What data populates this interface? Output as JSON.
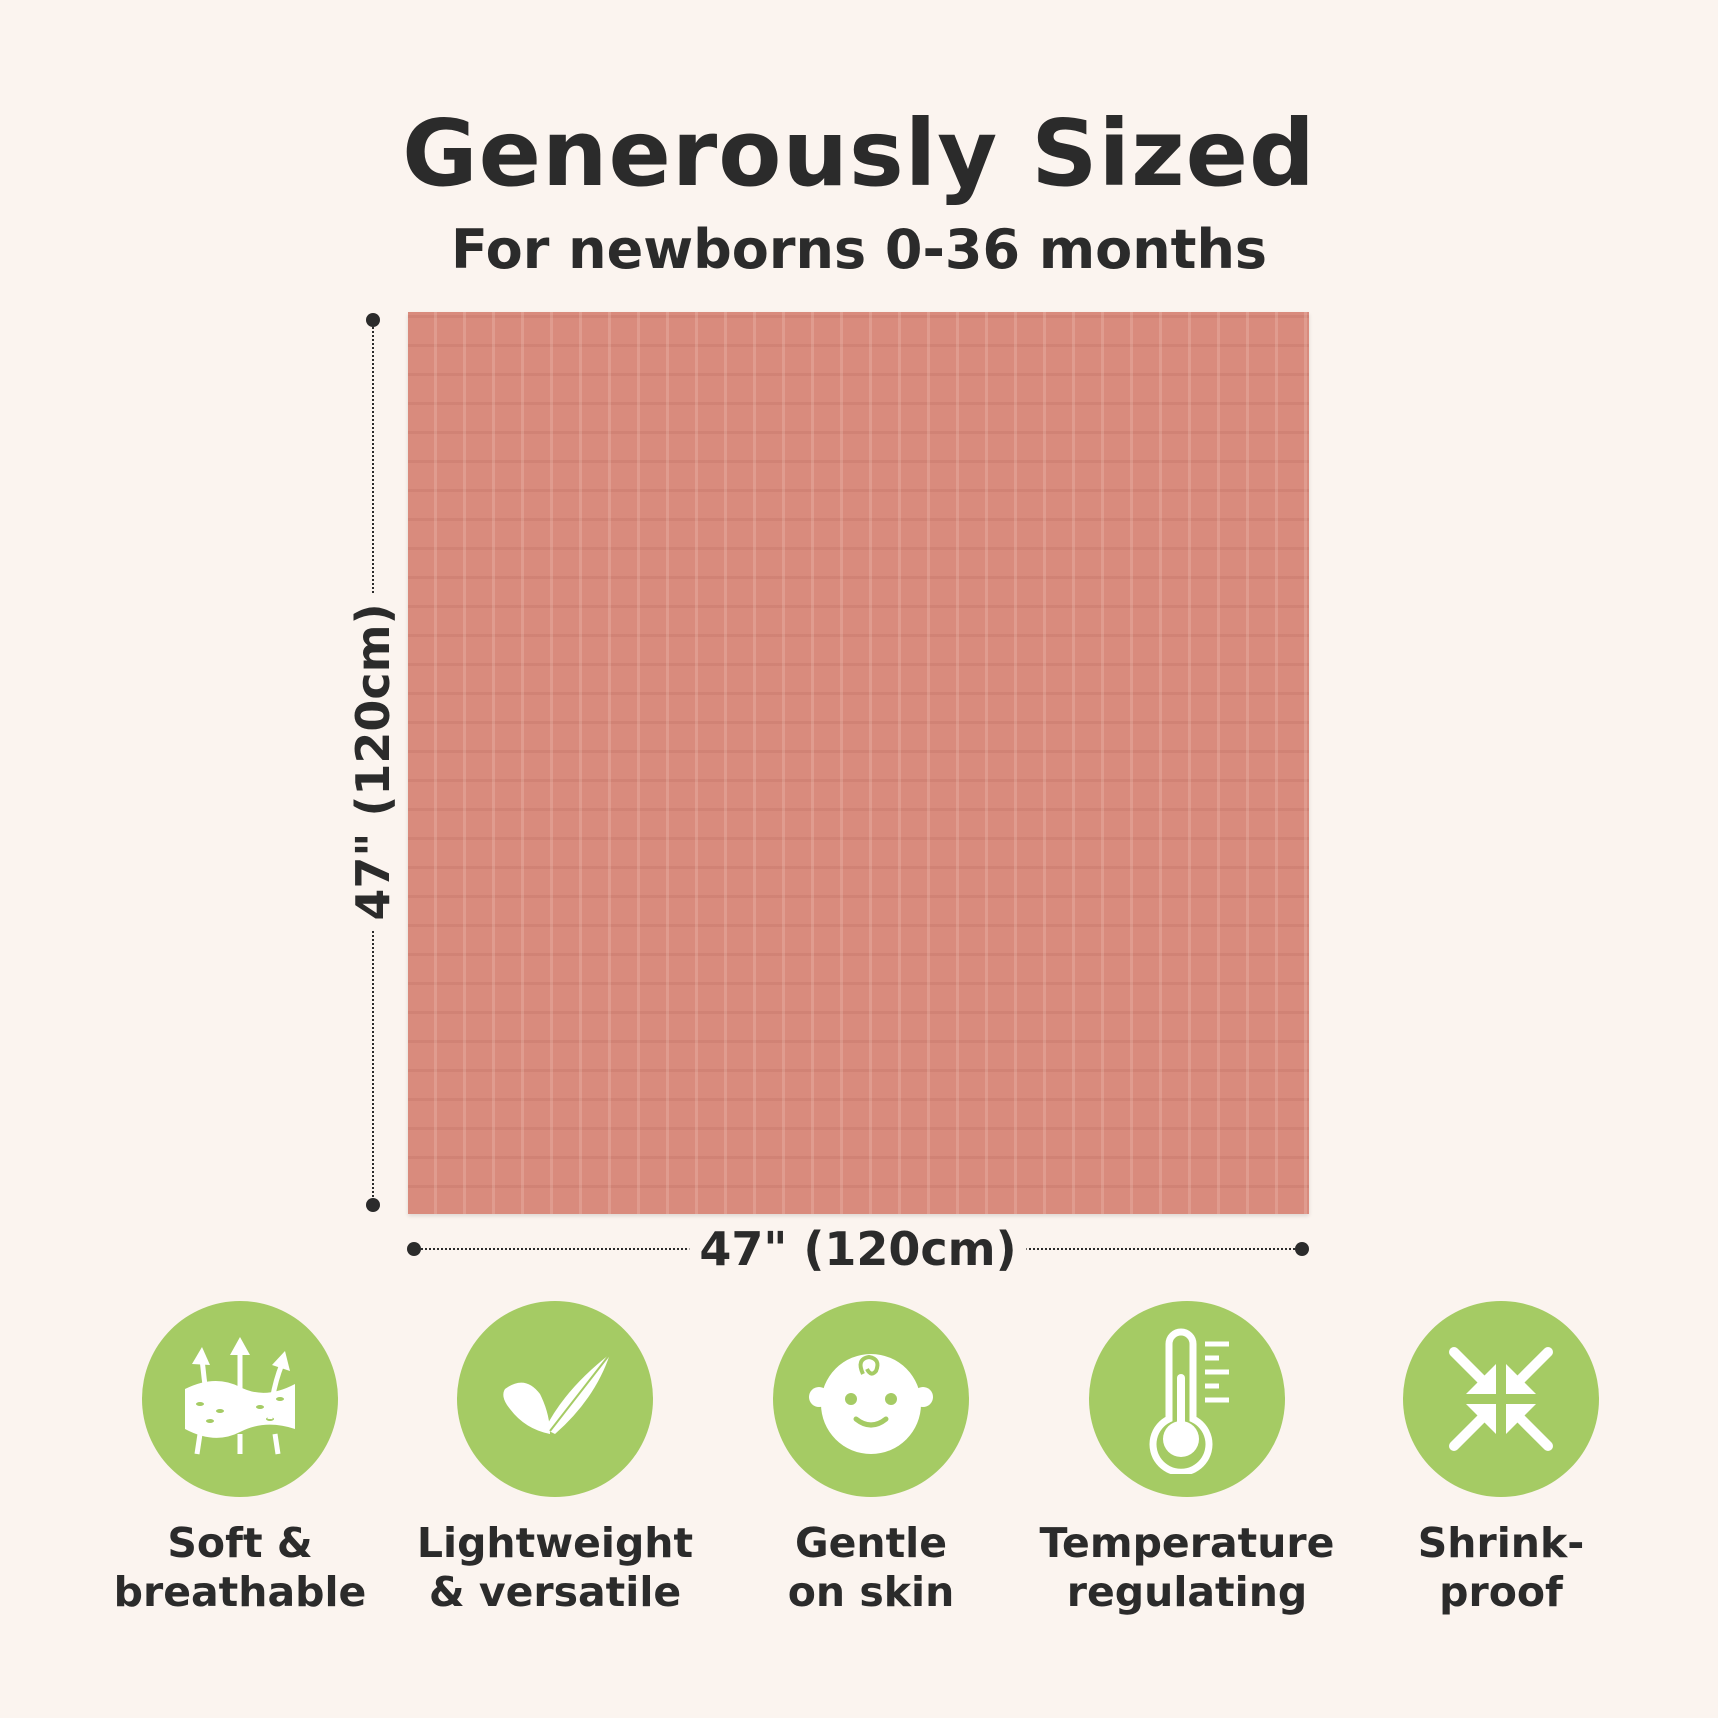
{
  "header": {
    "title": "Generously Sized",
    "subtitle": "For newborns 0-36 months"
  },
  "product": {
    "color": "#d98b7d",
    "height_label": "47\" (120cm)",
    "width_label": "47\" (120cm)"
  },
  "accent_color": "#a5cb64",
  "features": [
    {
      "icon": "breathable-fabric-icon",
      "line1": "Soft &",
      "line2": "breathable"
    },
    {
      "icon": "feather-icon",
      "line1": "Lightweight",
      "line2": "& versatile"
    },
    {
      "icon": "baby-face-icon",
      "line1": "Gentle",
      "line2": "on skin"
    },
    {
      "icon": "thermometer-icon",
      "line1": "Temperature",
      "line2": "regulating"
    },
    {
      "icon": "shrink-arrows-icon",
      "line1": "Shrink-",
      "line2": "proof"
    }
  ]
}
